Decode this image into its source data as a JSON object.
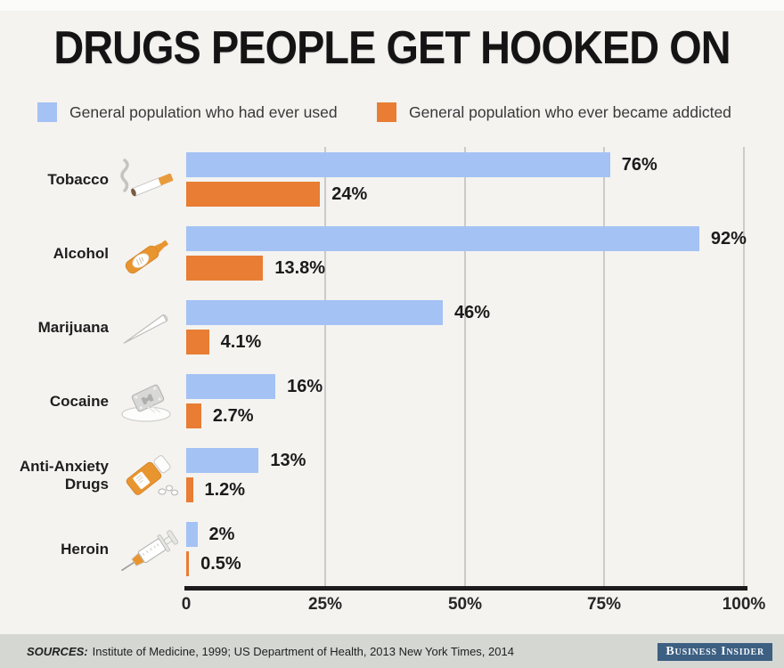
{
  "title": "DRUGS PEOPLE GET HOOKED ON",
  "legend": [
    {
      "label": "General population who had ever used",
      "color": "#a4c2f4"
    },
    {
      "label": "General population who ever became addicted",
      "color": "#e87d33"
    }
  ],
  "chart_data": {
    "type": "bar",
    "orientation": "horizontal",
    "title": "DRUGS PEOPLE GET HOOKED ON",
    "xlim": [
      0,
      100
    ],
    "grid": "vertical gridlines at 25, 50, 75, 100",
    "legend_position": "top",
    "x_ticks": [
      "0",
      "25%",
      "50%",
      "75%",
      "100%"
    ],
    "categories": [
      "Tobacco",
      "Alcohol",
      "Marijuana",
      "Cocaine",
      "Anti-Anxiety Drugs",
      "Heroin"
    ],
    "series": [
      {
        "name": "General population who had ever used",
        "color": "#a4c2f4",
        "values": [
          76,
          92,
          46,
          16,
          13,
          2
        ]
      },
      {
        "name": "General population who ever became addicted",
        "color": "#e87d33",
        "values": [
          24,
          13.8,
          4.1,
          2.7,
          1.2,
          0.5
        ]
      }
    ],
    "rows": [
      {
        "label": "Tobacco",
        "icon": "cigarette-icon",
        "used": 76,
        "used_label": "76%",
        "addicted": 24,
        "addicted_label": "24%"
      },
      {
        "label": "Alcohol",
        "icon": "bottle-icon",
        "used": 92,
        "used_label": "92%",
        "addicted": 13.8,
        "addicted_label": "13.8%"
      },
      {
        "label": "Marijuana",
        "icon": "joint-icon",
        "used": 46,
        "used_label": "46%",
        "addicted": 4.1,
        "addicted_label": "4.1%"
      },
      {
        "label": "Cocaine",
        "icon": "razor-blade-icon",
        "used": 16,
        "used_label": "16%",
        "addicted": 2.7,
        "addicted_label": "2.7%"
      },
      {
        "label": "Anti-Anxiety Drugs",
        "icon": "pill-bottle-icon",
        "used": 13,
        "used_label": "13%",
        "addicted": 1.2,
        "addicted_label": "1.2%"
      },
      {
        "label": "Heroin",
        "icon": "syringe-icon",
        "used": 2,
        "used_label": "2%",
        "addicted": 0.5,
        "addicted_label": "0.5%"
      }
    ]
  },
  "footer": {
    "sources_prefix": "SOURCES:",
    "sources_text": "Institute of Medicine, 1999; US Department of Health, 2013 New York Times, 2014",
    "brand": "Business Insider"
  }
}
